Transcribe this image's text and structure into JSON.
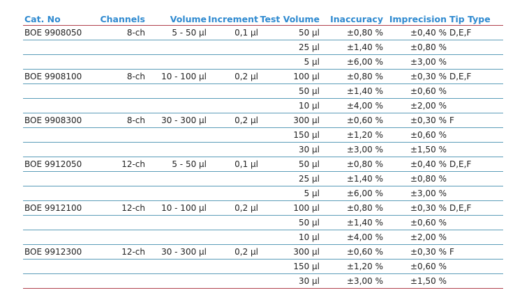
{
  "table": {
    "header": {
      "cat": "Cat. No",
      "channels": "Channels",
      "volume": "Volume",
      "increment": "Increment",
      "test": "Test Volume",
      "inacc": "Inaccuracy",
      "imprec": "Imprecision",
      "tip": "Tip Type"
    },
    "rows": [
      {
        "cat": "BOE 9908050",
        "channels": "8-ch",
        "volume": "5 - 50 µl",
        "increment": "0,1 µl",
        "test": "50 µl",
        "inacc": "±0,80 %",
        "imprec": "±0,40 %",
        "tip": "D,E,F"
      },
      {
        "test": "25 µl",
        "inacc": "±1,40 %",
        "imprec": "±0,80 %"
      },
      {
        "test": "5 µl",
        "inacc": "±6,00 %",
        "imprec": "±3,00 %"
      },
      {
        "cat": "BOE 9908100",
        "channels": "8-ch",
        "volume": "10 - 100 µl",
        "increment": "0,2 µl",
        "test": "100 µl",
        "inacc": "±0,80 %",
        "imprec": "±0,30 %",
        "tip": "D,E,F"
      },
      {
        "test": "50 µl",
        "inacc": "±1,40 %",
        "imprec": "±0,60 %"
      },
      {
        "test": "10 µl",
        "inacc": "±4,00 %",
        "imprec": "±2,00 %"
      },
      {
        "cat": "BOE 9908300",
        "channels": "8-ch",
        "volume": "30 - 300 µl",
        "increment": "0,2 µl",
        "test": "300 µl",
        "inacc": "±0,60 %",
        "imprec": "±0,30 %",
        "tip": "F"
      },
      {
        "test": "150 µl",
        "inacc": "±1,20 %",
        "imprec": "±0,60 %"
      },
      {
        "test": "30 µl",
        "inacc": "±3,00 %",
        "imprec": "±1,50 %"
      },
      {
        "cat": "BOE 9912050",
        "channels": "12-ch",
        "volume": "5 - 50 µl",
        "increment": "0,1 µl",
        "test": "50 µl",
        "inacc": "±0,80 %",
        "imprec": "±0,40 %",
        "tip": "D,E,F"
      },
      {
        "test": "25 µl",
        "inacc": "±1,40 %",
        "imprec": "±0,80 %"
      },
      {
        "test": "5 µl",
        "inacc": "±6,00 %",
        "imprec": "±3,00 %"
      },
      {
        "cat": "BOE 9912100",
        "channels": "12-ch",
        "volume": "10 - 100 µl",
        "increment": "0,2 µl",
        "test": "100 µl",
        "inacc": "±0,80 %",
        "imprec": "±0,30 %",
        "tip": "D,E,F"
      },
      {
        "test": "50 µl",
        "inacc": "±1,40 %",
        "imprec": "±0,60 %"
      },
      {
        "test": "10 µl",
        "inacc": "±4,00 %",
        "imprec": "±2,00 %"
      },
      {
        "cat": "BOE 9912300",
        "channels": "12-ch",
        "volume": "30 - 300 µl",
        "increment": "0,2 µl",
        "test": "300 µl",
        "inacc": "±0,60 %",
        "imprec": "±0,30 %",
        "tip": "F"
      },
      {
        "test": "150 µl",
        "inacc": "±1,20 %",
        "imprec": "±0,60 %"
      },
      {
        "test": "30 µl",
        "inacc": "±3,00 %",
        "imprec": "±1,50 %"
      }
    ]
  }
}
